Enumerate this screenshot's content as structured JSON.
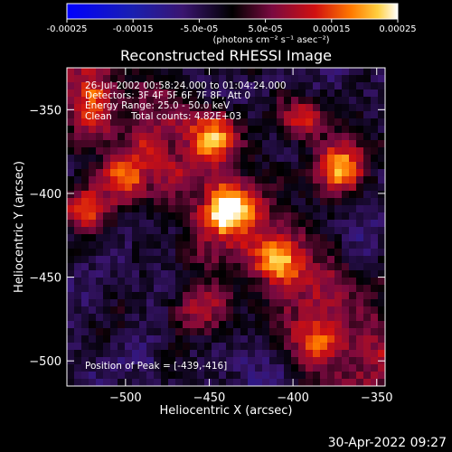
{
  "chart_data": {
    "type": "heatmap",
    "title": "Reconstructed RHESSI Image",
    "xlabel": "Heliocentric X (arcsec)",
    "ylabel": "Heliocentric Y (arcsec)",
    "xlim": [
      -535,
      -345
    ],
    "ylim": [
      -515,
      -325
    ],
    "x_ticks": [
      -500,
      -450,
      -400,
      -350
    ],
    "y_ticks": [
      -350,
      -400,
      -450,
      -500
    ],
    "colorbar": {
      "range": [
        -0.00025,
        0.00025
      ],
      "tick_values": [
        -0.00025,
        -0.00015,
        -5e-05,
        5e-05,
        0.00015,
        0.00025
      ],
      "tick_labels": [
        "-0.00025",
        "-0.00015",
        "-5.0e-05",
        "5.0e-05",
        "0.00015",
        "0.00025"
      ],
      "unit_label": "(photons cm⁻² s⁻¹ asec⁻²)"
    },
    "annotations": {
      "time_range": "26-Jul-2002 00:58:24.000 to 01:04:24.000",
      "detectors": "Detectors: 3F 4F 5F 6F 7F 8F, Att 0",
      "energy_range": "Energy Range: 25.0 - 50.0 keV",
      "clean": "Clean",
      "total_counts": "Total counts: 4.82E+03",
      "peak": "Position of Peak = [-439,-416]"
    },
    "peak_position": [
      -439,
      -416
    ],
    "bright_regions": [
      {
        "x": -440,
        "y": -410,
        "level": 1.0
      },
      {
        "x": -372,
        "y": -384,
        "level": 0.95
      },
      {
        "x": -448,
        "y": -365,
        "level": 0.8
      },
      {
        "x": -525,
        "y": -410,
        "level": 0.85
      },
      {
        "x": -408,
        "y": -440,
        "level": 0.75
      },
      {
        "x": -455,
        "y": -470,
        "level": 0.7
      },
      {
        "x": -385,
        "y": -490,
        "level": 0.6
      },
      {
        "x": -520,
        "y": -355,
        "level": 0.55
      },
      {
        "x": -500,
        "y": -390,
        "level": 0.6
      },
      {
        "x": -395,
        "y": -355,
        "level": 0.55
      }
    ]
  },
  "footer": {
    "timestamp": "30-Apr-2022 09:27"
  }
}
